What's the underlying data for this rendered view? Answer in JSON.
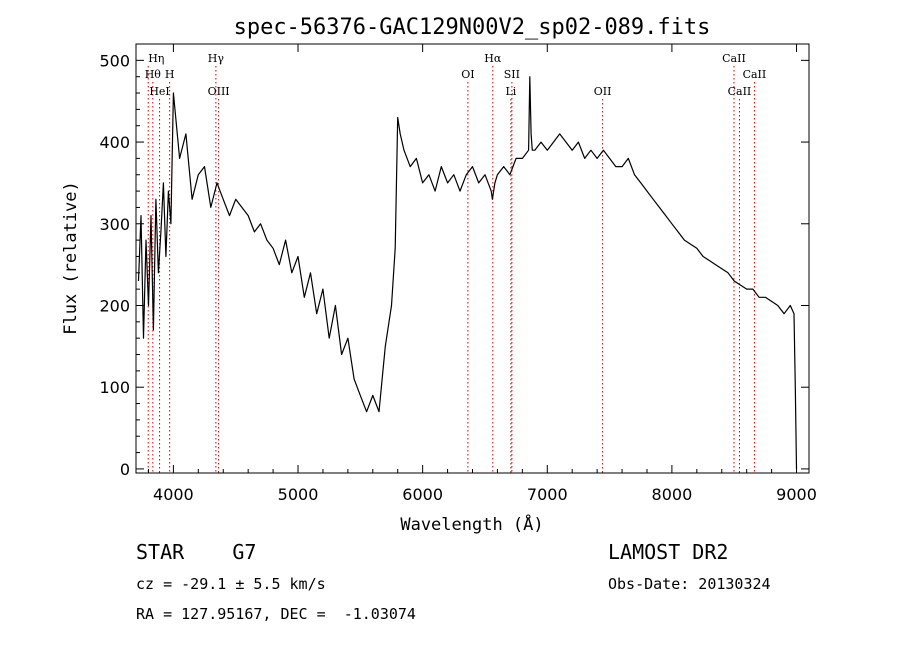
{
  "chart_data": {
    "type": "line",
    "title": "spec-56376-GAC129N00V2_sp02-089.fits",
    "xlabel": "Wavelength (Å)",
    "ylabel": "Flux (relative)",
    "xlim": [
      3700,
      9100
    ],
    "ylim": [
      -5,
      520
    ],
    "xticks": [
      4000,
      5000,
      6000,
      7000,
      8000,
      9000
    ],
    "yticks": [
      0,
      100,
      200,
      300,
      400,
      500
    ],
    "grid": false,
    "series": [
      {
        "color": "#000000",
        "x": [
          3720,
          3740,
          3760,
          3780,
          3800,
          3820,
          3840,
          3860,
          3880,
          3900,
          3920,
          3940,
          3960,
          3980,
          4000,
          4050,
          4100,
          4150,
          4200,
          4250,
          4300,
          4350,
          4400,
          4450,
          4500,
          4550,
          4600,
          4650,
          4700,
          4750,
          4800,
          4850,
          4900,
          4950,
          5000,
          5050,
          5100,
          5150,
          5200,
          5250,
          5300,
          5350,
          5400,
          5450,
          5500,
          5550,
          5600,
          5650,
          5700,
          5750,
          5780,
          5800,
          5820,
          5850,
          5900,
          5950,
          6000,
          6050,
          6100,
          6150,
          6200,
          6250,
          6300,
          6350,
          6400,
          6450,
          6500,
          6550,
          6560,
          6580,
          6600,
          6650,
          6700,
          6750,
          6800,
          6850,
          6860,
          6870,
          6880,
          6900,
          6950,
          7000,
          7050,
          7100,
          7150,
          7200,
          7250,
          7300,
          7350,
          7400,
          7450,
          7500,
          7550,
          7600,
          7650,
          7700,
          7750,
          7800,
          7850,
          7900,
          7950,
          8000,
          8050,
          8100,
          8150,
          8200,
          8250,
          8300,
          8350,
          8400,
          8450,
          8500,
          8550,
          8600,
          8650,
          8700,
          8750,
          8800,
          8850,
          8900,
          8950,
          8980,
          8990,
          9000
        ],
        "y": [
          230,
          310,
          160,
          280,
          200,
          310,
          170,
          330,
          240,
          290,
          350,
          260,
          340,
          300,
          460,
          380,
          410,
          330,
          360,
          370,
          320,
          350,
          330,
          310,
          330,
          320,
          310,
          290,
          300,
          280,
          270,
          250,
          280,
          240,
          260,
          210,
          240,
          190,
          220,
          160,
          200,
          140,
          160,
          110,
          90,
          70,
          90,
          70,
          150,
          200,
          270,
          430,
          410,
          390,
          370,
          380,
          350,
          360,
          340,
          370,
          350,
          360,
          340,
          360,
          370,
          350,
          360,
          340,
          330,
          350,
          360,
          370,
          360,
          380,
          380,
          390,
          480,
          410,
          390,
          390,
          400,
          390,
          400,
          410,
          400,
          390,
          400,
          380,
          390,
          380,
          390,
          380,
          370,
          370,
          380,
          360,
          350,
          340,
          330,
          320,
          310,
          300,
          290,
          280,
          275,
          270,
          260,
          255,
          250,
          245,
          240,
          230,
          225,
          220,
          220,
          210,
          210,
          205,
          200,
          190,
          200,
          190,
          100,
          0
        ]
      }
    ],
    "line_markers": [
      {
        "x": 3798,
        "label": "Hη",
        "row": 0,
        "anchor": "start"
      },
      {
        "x": 3835,
        "label": "Hθ",
        "row": 1,
        "anchor": "middle"
      },
      {
        "x": 3889,
        "label": "HeI",
        "row": 2,
        "anchor": "middle"
      },
      {
        "x": 3970,
        "label": "H",
        "row": 1,
        "anchor": "middle"
      },
      {
        "x": 4341,
        "label": "Hγ",
        "row": 0,
        "anchor": "middle"
      },
      {
        "x": 4363,
        "label": "OIII",
        "row": 2,
        "anchor": "middle"
      },
      {
        "x": 6363,
        "label": "OI",
        "row": 1,
        "anchor": "middle"
      },
      {
        "x": 6563,
        "label": "Hα",
        "row": 0,
        "anchor": "middle"
      },
      {
        "x": 6716,
        "label": "SII",
        "row": 1,
        "anchor": "middle"
      },
      {
        "x": 6708,
        "label": "Li",
        "row": 2,
        "anchor": "middle"
      },
      {
        "x": 7444,
        "label": "OII",
        "row": 2,
        "anchor": "middle"
      },
      {
        "x": 8498,
        "label": "CaII",
        "row": 0,
        "anchor": "middle"
      },
      {
        "x": 8542,
        "label": "CaII",
        "row": 2,
        "anchor": "middle"
      },
      {
        "x": 8662,
        "label": "CaII",
        "row": 1,
        "anchor": "middle"
      }
    ],
    "marker_color": "#cc0000"
  },
  "footer": {
    "class_label": "STAR    G7",
    "cz_label": "cz = -29.1 ± 5.5 km/s",
    "coords_label": "RA = 127.95167, DEC =  -1.03074",
    "survey_label": "LAMOST DR2",
    "obs_label": "Obs-Date: 20130324"
  }
}
